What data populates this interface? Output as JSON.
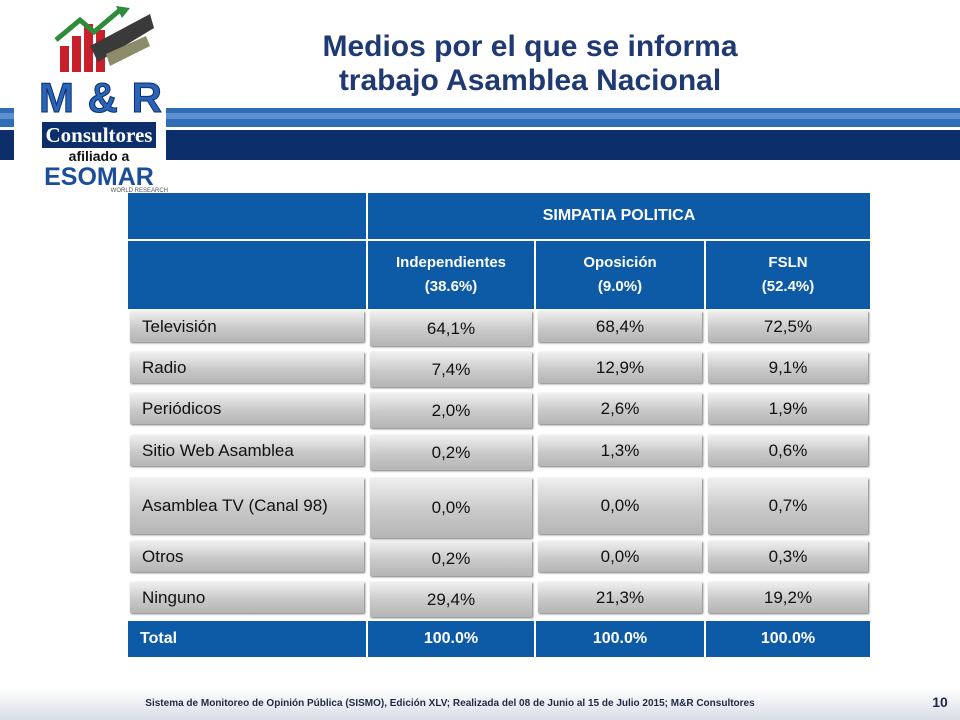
{
  "title_line1": "Medios por el que se informa",
  "title_line2": "trabajo Asamblea Nacional",
  "logo": {
    "brand": "M & R",
    "consultores": "Consultores",
    "afiliado": "afiliado a",
    "esomar": "ESOMAR",
    "world_research": "WORLD RESEARCH"
  },
  "table": {
    "group_header": "SIMPATIA POLITICA",
    "columns": [
      {
        "name": "Independientes",
        "pct": "(38.6%)"
      },
      {
        "name": "Oposición",
        "pct": "(9.0%)"
      },
      {
        "name": "FSLN",
        "pct": "(52.4%)"
      }
    ],
    "rows": [
      {
        "label": "Televisión",
        "values": [
          "64,1%",
          "68,4%",
          "72,5%"
        ]
      },
      {
        "label": "Radio",
        "values": [
          "7,4%",
          "12,9%",
          "9,1%"
        ]
      },
      {
        "label": "Periódicos",
        "values": [
          "2,0%",
          "2,6%",
          "1,9%"
        ]
      },
      {
        "label": "Sitio Web Asamblea",
        "values": [
          "0,2%",
          "1,3%",
          "0,6%"
        ]
      },
      {
        "label": "Asamblea TV (Canal 98)",
        "values": [
          "0,0%",
          "0,0%",
          "0,7%"
        ]
      },
      {
        "label": "Otros",
        "values": [
          "0,2%",
          "0,0%",
          "0,3%"
        ]
      },
      {
        "label": "Ninguno",
        "values": [
          "29,4%",
          "21,3%",
          "19,2%"
        ]
      }
    ],
    "total": {
      "label": "Total",
      "values": [
        "100.0%",
        "100.0%",
        "100.0%"
      ]
    }
  },
  "footer": "Sistema de Monitoreo de Opinión Pública (SISMO), Edición XLV; Realizada del 08 de Junio al 15 de Julio 2015; M&R Consultores",
  "page_number": "10",
  "colors": {
    "header_blue": "#0d5aa7",
    "title_blue": "#1f3a73",
    "stripe_dark": "#0c2f6b",
    "stripe_light": "#2f6db6"
  }
}
